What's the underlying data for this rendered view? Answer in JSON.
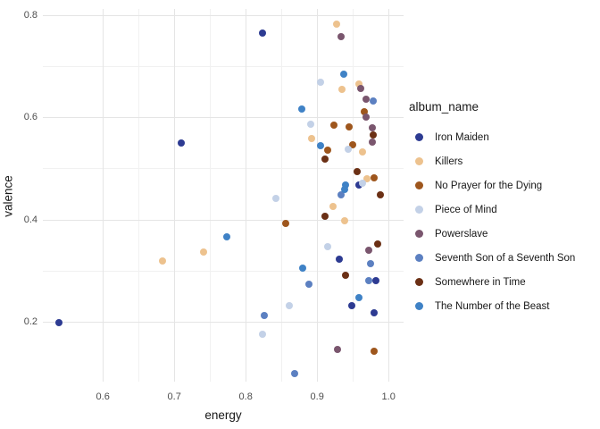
{
  "chart_data": {
    "type": "scatter",
    "xlabel": "energy",
    "ylabel": "valence",
    "legend_title": "album_name",
    "legend_position": "right",
    "grid": "on",
    "xlim": [
      0.516,
      1.021
    ],
    "ylim": [
      0.083,
      0.812
    ],
    "x_ticks": [
      0.6,
      0.7,
      0.8,
      0.9,
      1.0
    ],
    "y_ticks": [
      0.2,
      0.4,
      0.6,
      0.8
    ],
    "x_minor_ticks": [
      0.65,
      0.75,
      0.85,
      0.95
    ],
    "y_minor_ticks": [
      0.3,
      0.5,
      0.7
    ],
    "series": [
      {
        "name": "Iron Maiden",
        "color": "#2d3b92",
        "points": [
          [
            0.538,
            0.198
          ],
          [
            0.71,
            0.55
          ],
          [
            0.823,
            0.764
          ],
          [
            0.931,
            0.323
          ],
          [
            0.958,
            0.467
          ],
          [
            0.949,
            0.231
          ],
          [
            0.98,
            0.217
          ],
          [
            0.982,
            0.28
          ]
        ]
      },
      {
        "name": "Killers",
        "color": "#edc28e",
        "points": [
          [
            0.684,
            0.319
          ],
          [
            0.741,
            0.337
          ],
          [
            0.927,
            0.782
          ],
          [
            0.935,
            0.654
          ],
          [
            0.958,
            0.666
          ],
          [
            0.892,
            0.559
          ],
          [
            0.963,
            0.533
          ],
          [
            0.97,
            0.48
          ],
          [
            0.922,
            0.426
          ],
          [
            0.938,
            0.398
          ]
        ]
      },
      {
        "name": "No Prayer for the Dying",
        "color": "#9e561d",
        "points": [
          [
            0.856,
            0.393
          ],
          [
            0.923,
            0.584
          ],
          [
            0.945,
            0.581
          ],
          [
            0.966,
            0.611
          ],
          [
            0.95,
            0.546
          ],
          [
            0.915,
            0.536
          ],
          [
            0.98,
            0.481
          ],
          [
            0.98,
            0.142
          ]
        ]
      },
      {
        "name": "Piece of Mind",
        "color": "#c3d1e7",
        "points": [
          [
            0.824,
            0.176
          ],
          [
            0.842,
            0.441
          ],
          [
            0.861,
            0.231
          ],
          [
            0.891,
            0.586
          ],
          [
            0.905,
            0.669
          ],
          [
            0.915,
            0.347
          ],
          [
            0.943,
            0.537
          ],
          [
            0.963,
            0.471
          ]
        ]
      },
      {
        "name": "Powerslave",
        "color": "#7a566e",
        "points": [
          [
            0.933,
            0.758
          ],
          [
            0.961,
            0.657
          ],
          [
            0.968,
            0.635
          ],
          [
            0.969,
            0.6
          ],
          [
            0.977,
            0.58
          ],
          [
            0.977,
            0.551
          ],
          [
            0.972,
            0.34
          ],
          [
            0.929,
            0.146
          ]
        ]
      },
      {
        "name": "Seventh Son of a Seventh Son",
        "color": "#5c80c1",
        "points": [
          [
            0.826,
            0.213
          ],
          [
            0.869,
            0.098
          ],
          [
            0.888,
            0.273
          ],
          [
            0.933,
            0.449
          ],
          [
            0.972,
            0.28
          ],
          [
            0.975,
            0.314
          ],
          [
            0.978,
            0.632
          ]
        ]
      },
      {
        "name": "Somewhere in Time",
        "color": "#6b3015",
        "points": [
          [
            0.911,
            0.519
          ],
          [
            0.979,
            0.566
          ],
          [
            0.956,
            0.494
          ],
          [
            0.988,
            0.448
          ],
          [
            0.911,
            0.407
          ],
          [
            0.94,
            0.291
          ],
          [
            0.985,
            0.352
          ]
        ]
      },
      {
        "name": "The Number of the Beast",
        "color": "#3f82c6",
        "points": [
          [
            0.773,
            0.366
          ],
          [
            0.879,
            0.617
          ],
          [
            0.88,
            0.305
          ],
          [
            0.905,
            0.545
          ],
          [
            0.937,
            0.685
          ],
          [
            0.94,
            0.468
          ],
          [
            0.938,
            0.459
          ],
          [
            0.958,
            0.248
          ]
        ]
      }
    ]
  }
}
